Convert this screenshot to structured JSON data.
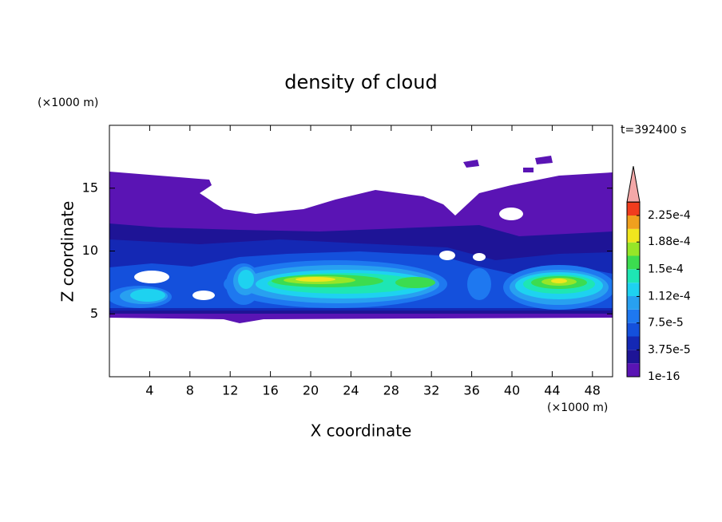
{
  "chart_data": {
    "type": "contour",
    "title": "density of cloud",
    "x_label": "X coordinate",
    "y_label": "Z coordinate",
    "x_unit": "(×1000 m)",
    "y_unit": "(×1000 m)",
    "time_label": "t=392400 s",
    "xlim": [
      0,
      50
    ],
    "xticks": [
      4,
      8,
      12,
      16,
      20,
      24,
      28,
      32,
      36,
      40,
      44,
      48
    ],
    "ylim": [
      0,
      20
    ],
    "yticks": [
      5,
      10,
      15
    ],
    "colorbar": {
      "colors": [
        "#5a14b4",
        "#1e1496",
        "#1428b4",
        "#1450dc",
        "#1e78f0",
        "#28a0f0",
        "#1ed2f0",
        "#1ee6b4",
        "#3cdc50",
        "#96e628",
        "#f0e61e",
        "#f0a01e",
        "#f03c1e"
      ],
      "over_color": "#f4a8a8",
      "ticks": [
        1e-16,
        {
          "value": 3.75e-05,
          "label": "3.75e-5"
        },
        {
          "value": 7.5e-05,
          "label": "7.5e-5"
        },
        {
          "value": 0.000112,
          "label": "1.12e-4"
        },
        {
          "value": 0.00015,
          "label": "1.5e-4"
        },
        {
          "value": 0.000188,
          "label": "1.88e-4"
        },
        {
          "value": 0.000225,
          "label": "2.25e-4"
        }
      ]
    }
  }
}
